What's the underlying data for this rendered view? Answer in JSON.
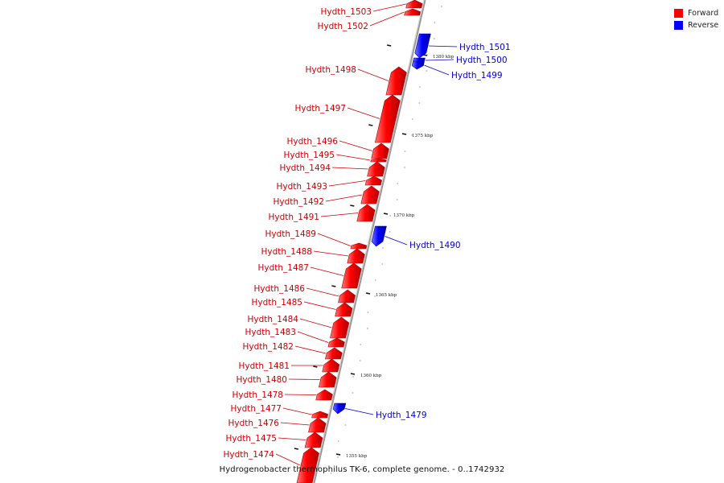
{
  "title": "Hydrogenobacter thermophilus TK-6, complete genome. - 0..1742932",
  "legend": {
    "forward": {
      "label": "Forward",
      "color": "#ff0000"
    },
    "reverse": {
      "label": "Reverse",
      "color": "#0000ff"
    }
  },
  "colors": {
    "forward_label": "#cc0000",
    "reverse_label": "#0000cc",
    "backbone": "#999999"
  },
  "ticks": [
    {
      "label": "1380 kbp"
    },
    {
      "label": "1375 kbp"
    },
    {
      "label": "1370 kbp"
    },
    {
      "label": "1365 kbp"
    },
    {
      "label": "1360 kbp"
    },
    {
      "label": "1355 kbp"
    }
  ],
  "genes": [
    {
      "name": "Hydth_1503",
      "strand": "forward"
    },
    {
      "name": "Hydth_1502",
      "strand": "forward"
    },
    {
      "name": "Hydth_1501",
      "strand": "reverse"
    },
    {
      "name": "Hydth_1500",
      "strand": "reverse"
    },
    {
      "name": "Hydth_1499",
      "strand": "reverse"
    },
    {
      "name": "Hydth_1498",
      "strand": "forward"
    },
    {
      "name": "Hydth_1497",
      "strand": "forward"
    },
    {
      "name": "Hydth_1496",
      "strand": "forward"
    },
    {
      "name": "Hydth_1495",
      "strand": "forward"
    },
    {
      "name": "Hydth_1494",
      "strand": "forward"
    },
    {
      "name": "Hydth_1493",
      "strand": "forward"
    },
    {
      "name": "Hydth_1492",
      "strand": "forward"
    },
    {
      "name": "Hydth_1491",
      "strand": "forward"
    },
    {
      "name": "Hydth_1490",
      "strand": "reverse"
    },
    {
      "name": "Hydth_1489",
      "strand": "forward"
    },
    {
      "name": "Hydth_1488",
      "strand": "forward"
    },
    {
      "name": "Hydth_1487",
      "strand": "forward"
    },
    {
      "name": "Hydth_1486",
      "strand": "forward"
    },
    {
      "name": "Hydth_1485",
      "strand": "forward"
    },
    {
      "name": "Hydth_1484",
      "strand": "forward"
    },
    {
      "name": "Hydth_1483",
      "strand": "forward"
    },
    {
      "name": "Hydth_1482",
      "strand": "forward"
    },
    {
      "name": "Hydth_1481",
      "strand": "forward"
    },
    {
      "name": "Hydth_1480",
      "strand": "forward"
    },
    {
      "name": "Hydth_1479",
      "strand": "reverse"
    },
    {
      "name": "Hydth_1478",
      "strand": "forward"
    },
    {
      "name": "Hydth_1477",
      "strand": "forward"
    },
    {
      "name": "Hydth_1476",
      "strand": "forward"
    },
    {
      "name": "Hydth_1475",
      "strand": "forward"
    },
    {
      "name": "Hydth_1474",
      "strand": "forward"
    }
  ]
}
